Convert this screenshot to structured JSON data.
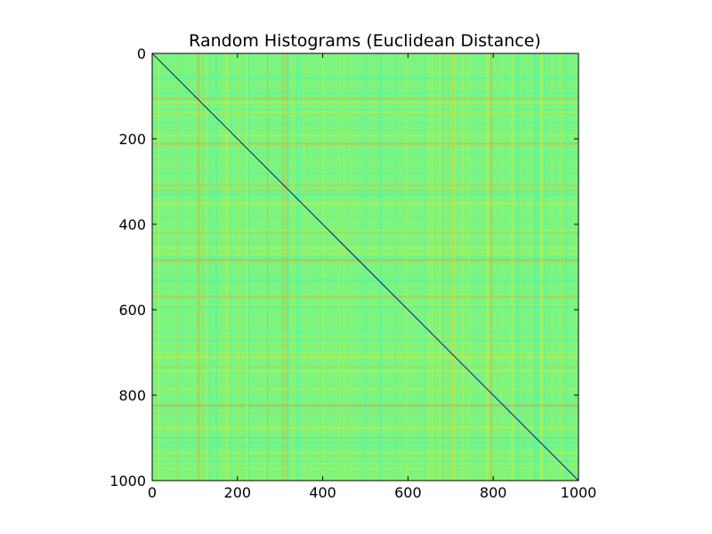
{
  "chart_data": {
    "type": "heatmap",
    "title": "Random Histograms (Euclidean Distance)",
    "xlabel": "",
    "ylabel": "",
    "xlim": [
      0,
      1000
    ],
    "ylim": [
      1000,
      0
    ],
    "x_ticks": [
      "0",
      "200",
      "400",
      "600",
      "800",
      "1000"
    ],
    "y_ticks": [
      "0",
      "200",
      "400",
      "600",
      "800",
      "1000"
    ],
    "x_tick_values": [
      0,
      200,
      400,
      600,
      800,
      1000
    ],
    "y_tick_values": [
      0,
      200,
      400,
      600,
      800,
      1000
    ],
    "matrix_size": 1000,
    "diagonal_value": 0,
    "colormap": "jet",
    "colors": {
      "base": "#7cf47f",
      "cyan_tint": "#3cf5c1",
      "yellow_tint": "#d8f033",
      "orange_tint": "#f0a020",
      "diagonal": "#00007f"
    },
    "grid": false,
    "legend": "none"
  }
}
